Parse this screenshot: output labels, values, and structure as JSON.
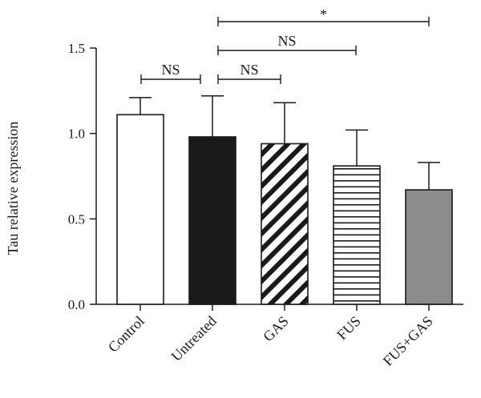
{
  "chart_data": {
    "type": "bar",
    "title": "",
    "xlabel": "",
    "ylabel": "Tau relative expression",
    "ylim": [
      0,
      1.5
    ],
    "yticks": [
      "0.0",
      "0.5",
      "1.0",
      "1.5"
    ],
    "grid": false,
    "categories": [
      "Control",
      "Untreated",
      "GAS",
      "FUS",
      "FUS+GAS"
    ],
    "values": [
      1.11,
      0.98,
      0.94,
      0.81,
      0.67
    ],
    "errors": [
      0.1,
      0.24,
      0.24,
      0.21,
      0.16
    ],
    "fills": [
      "white",
      "black",
      "diagonal-stripes",
      "horizontal-stripes",
      "gray"
    ],
    "colors": {
      "outline": "#1a1a1a",
      "black_fill": "#1a1a1a",
      "gray_fill": "#8c8c8c",
      "white_fill": "#ffffff"
    },
    "significance": [
      {
        "from": "Control",
        "to": "Untreated",
        "label": "NS"
      },
      {
        "from": "Untreated",
        "to": "GAS",
        "label": "NS"
      },
      {
        "from": "Untreated",
        "to": "FUS",
        "label": "NS"
      },
      {
        "from": "Untreated",
        "to": "FUS+GAS",
        "label": "*"
      }
    ]
  }
}
